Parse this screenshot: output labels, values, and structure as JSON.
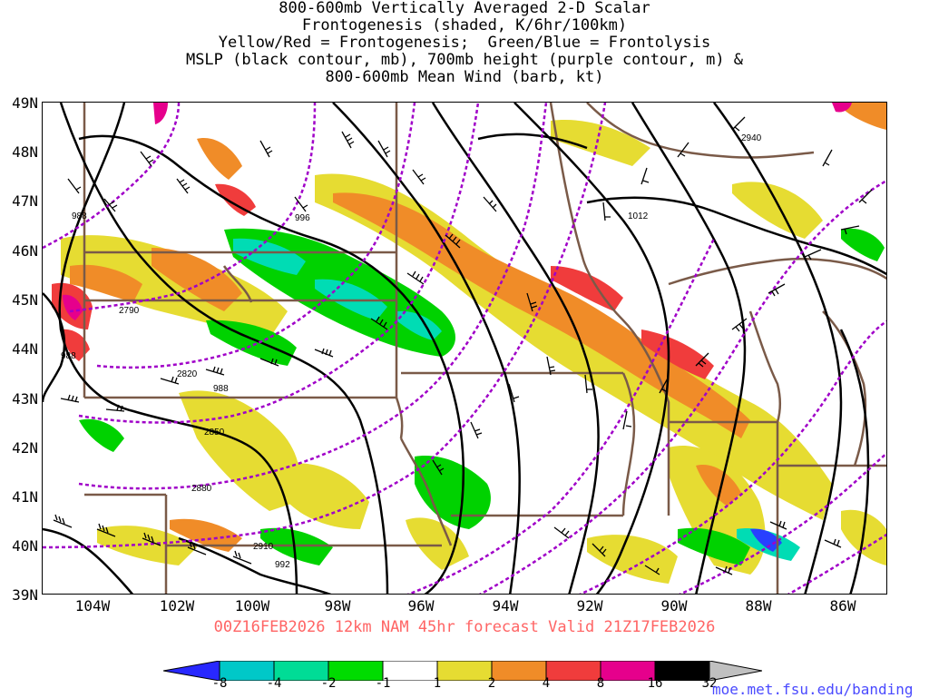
{
  "title": {
    "line1": "800-600mb Vertically Averaged 2-D Scalar",
    "line2": "Frontogenesis (shaded, K/6hr/100km)",
    "line3": "Yellow/Red = Frontogenesis;  Green/Blue = Frontolysis",
    "line4": "MSLP (black contour, mb), 700mb height (purple contour, m) &",
    "line5": "800-600mb Mean Wind (barb, kt)"
  },
  "valid_line": "00Z16FEB2026 12km NAM 45hr forecast Valid 21Z17FEB2026",
  "credit": "moe.met.fsu.edu/banding",
  "map": {
    "lat_labels": [
      "49N",
      "48N",
      "47N",
      "46N",
      "45N",
      "44N",
      "43N",
      "42N",
      "41N",
      "40N",
      "39N"
    ],
    "lon_labels": [
      "104W",
      "102W",
      "100W",
      "98W",
      "96W",
      "94W",
      "92W",
      "90W",
      "88W",
      "86W"
    ],
    "lon_range": [
      -105,
      -85
    ],
    "lat_range": [
      39,
      49
    ],
    "mslp_contour_labels": [
      "988",
      "996",
      "1012",
      "988",
      "988",
      "992"
    ],
    "height_contour_labels": [
      "2790",
      "2820",
      "2850",
      "2880",
      "2910",
      "2940"
    ],
    "colors": {
      "mslp": "#000000",
      "height": "#a000c8",
      "borders": "#7a5a48",
      "frontogenesis_yellow": "#e6dc32",
      "frontogenesis_orange": "#f08c28",
      "frontogenesis_red": "#f03c3c",
      "frontogenesis_magenta": "#e6008c",
      "frontolysis_green": "#00d200",
      "frontolysis_teal": "#00dc96",
      "frontolysis_cyan": "#00c8c8",
      "frontolysis_blue": "#2840ff"
    }
  },
  "colorbar": {
    "labels": [
      "-8",
      "-4",
      "-2",
      "-1",
      "1",
      "2",
      "4",
      "8",
      "16",
      "32"
    ],
    "colors": [
      "#2828ff",
      "#00c8c8",
      "#00dc96",
      "#00dc00",
      "#ffffff",
      "#e6dc32",
      "#f08c28",
      "#f03c3c",
      "#e6008c",
      "#000000",
      "#c0c0c0"
    ]
  }
}
